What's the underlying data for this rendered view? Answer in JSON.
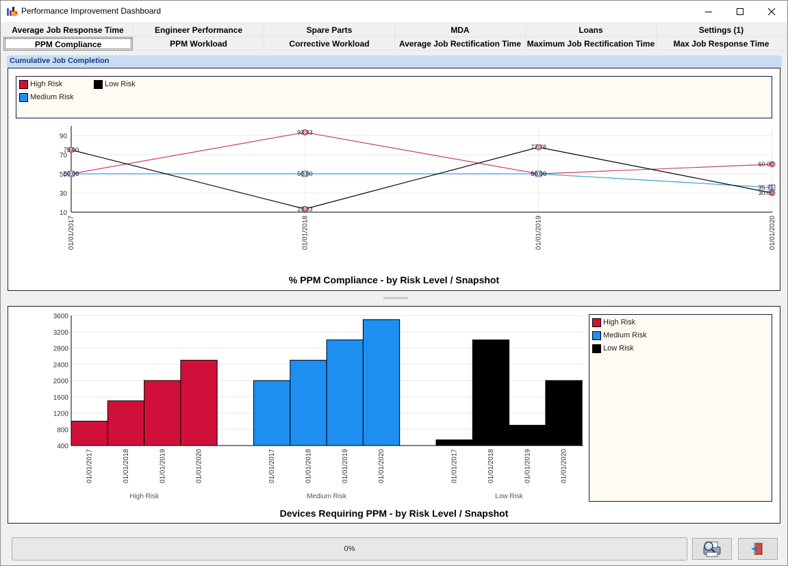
{
  "window": {
    "title": "Performance Improvement Dashboard"
  },
  "tabs": {
    "row1": [
      "Average Job Response Time",
      "Engineer Performance",
      "Spare Parts",
      "MDA",
      "Loans",
      "Settings (1)"
    ],
    "row2": [
      "PPM Compliance",
      "PPM Workload",
      "Corrective Workload",
      "Average Job Rectification Time",
      "Maximum Job Rectification Time",
      "Max Job Response Time"
    ],
    "active": "PPM Compliance"
  },
  "section": {
    "header": "Cumulative Job Completion"
  },
  "colors": {
    "high": "#d0103a",
    "medium": "#1e8ef0",
    "low": "#000000",
    "high_line": "#c8406a",
    "medium_line": "#3aa0d8"
  },
  "chart_data": [
    {
      "type": "line",
      "title": "% PPM Compliance - by Risk Level / Snapshot",
      "x": [
        "01/01/2017",
        "01/01/2018",
        "01/01/2019",
        "01/01/2020"
      ],
      "ylim": [
        10,
        100
      ],
      "yticks": [
        "10",
        "30",
        "50",
        "70",
        "90"
      ],
      "legend": {
        "placement": "top",
        "entries": [
          "High Risk",
          "Medium Risk",
          "Low Risk"
        ]
      },
      "series": [
        {
          "name": "High Risk",
          "values": [
            50.0,
            93.33,
            50.0,
            60.0
          ],
          "labels": [
            "50.00",
            "93.33",
            "50.00",
            "60.00"
          ]
        },
        {
          "name": "Medium Risk",
          "values": [
            50.0,
            50.0,
            50.0,
            35.71
          ],
          "labels": [
            "50.00",
            "50.00",
            "50.00",
            "35.71"
          ]
        },
        {
          "name": "Low Risk",
          "values": [
            75.0,
            13.33,
            77.78,
            30.0
          ],
          "labels": [
            "75.00",
            "13.33",
            "77.78",
            "30.00"
          ]
        }
      ]
    },
    {
      "type": "bar",
      "title": "Devices Requiring PPM - by Risk Level / Snapshot",
      "groups": [
        "High Risk",
        "Medium Risk",
        "Low Risk"
      ],
      "categories": [
        "01/01/2017",
        "01/01/2018",
        "01/01/2019",
        "01/01/2020"
      ],
      "ylim": [
        400,
        3600
      ],
      "yticks": [
        "400",
        "800",
        "1200",
        "1600",
        "2000",
        "2400",
        "2800",
        "3200",
        "3600"
      ],
      "legend": {
        "placement": "right",
        "entries": [
          "High Risk",
          "Medium Risk",
          "Low Risk"
        ]
      },
      "series": [
        {
          "name": "High Risk",
          "values": [
            1000,
            1500,
            2000,
            2500
          ]
        },
        {
          "name": "Medium Risk",
          "values": [
            2000,
            2500,
            3000,
            3500
          ]
        },
        {
          "name": "Low Risk",
          "values": [
            540,
            3000,
            900,
            2000
          ]
        }
      ]
    }
  ],
  "status": {
    "progress_text": "0%",
    "progress": 0
  },
  "icons": {
    "app": "chart-icon",
    "print": "print-preview-icon",
    "exit": "exit-icon"
  }
}
